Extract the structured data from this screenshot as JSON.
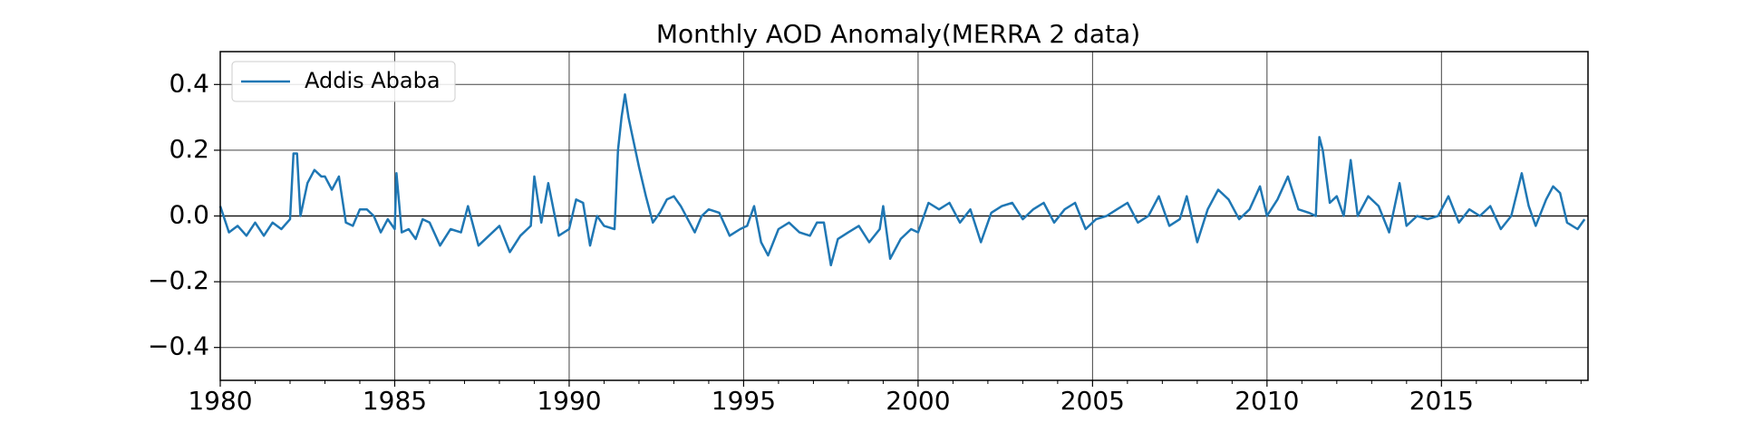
{
  "chart_data": {
    "type": "line",
    "title": "Monthly AOD Anomaly(MERRA 2 data)",
    "xlabel": "",
    "ylabel": "",
    "xlim": [
      1980,
      2019.2
    ],
    "ylim": [
      -0.5,
      0.5
    ],
    "x_ticks": [
      1980,
      1985,
      1990,
      1995,
      2000,
      2005,
      2010,
      2015
    ],
    "x_tick_labels": [
      "1980",
      "1985",
      "1990",
      "1995",
      "2000",
      "2005",
      "2010",
      "2015"
    ],
    "y_ticks": [
      -0.4,
      -0.2,
      0.0,
      0.2,
      0.4
    ],
    "y_tick_labels": [
      "−0.4",
      "−0.2",
      "0.0",
      "0.2",
      "0.4"
    ],
    "grid": true,
    "legend_position": "top-left",
    "series": [
      {
        "name": "Addis Ababa",
        "color": "#1f77b4",
        "x": [
          1980.0,
          1980.25,
          1980.5,
          1980.75,
          1981.0,
          1981.25,
          1981.5,
          1981.75,
          1982.0,
          1982.1,
          1982.2,
          1982.3,
          1982.5,
          1982.7,
          1982.9,
          1983.0,
          1983.2,
          1983.4,
          1983.6,
          1983.8,
          1984.0,
          1984.2,
          1984.4,
          1984.6,
          1984.8,
          1985.0,
          1985.05,
          1985.2,
          1985.4,
          1985.6,
          1985.8,
          1986.0,
          1986.3,
          1986.6,
          1986.9,
          1987.1,
          1987.4,
          1987.7,
          1988.0,
          1988.3,
          1988.6,
          1988.9,
          1989.0,
          1989.2,
          1989.4,
          1989.7,
          1990.0,
          1990.2,
          1990.4,
          1990.6,
          1990.8,
          1991.0,
          1991.3,
          1991.4,
          1991.5,
          1991.6,
          1991.7,
          1991.8,
          1992.0,
          1992.2,
          1992.4,
          1992.6,
          1992.8,
          1993.0,
          1993.2,
          1993.4,
          1993.6,
          1993.8,
          1994.0,
          1994.3,
          1994.6,
          1994.9,
          1995.1,
          1995.3,
          1995.5,
          1995.7,
          1996.0,
          1996.3,
          1996.6,
          1996.9,
          1997.1,
          1997.3,
          1997.5,
          1997.7,
          1998.0,
          1998.3,
          1998.6,
          1998.9,
          1999.0,
          1999.2,
          1999.5,
          1999.8,
          2000.0,
          2000.3,
          2000.6,
          2000.9,
          2001.2,
          2001.5,
          2001.8,
          2002.1,
          2002.4,
          2002.7,
          2003.0,
          2003.3,
          2003.6,
          2003.9,
          2004.2,
          2004.5,
          2004.8,
          2005.1,
          2005.4,
          2005.7,
          2006.0,
          2006.3,
          2006.6,
          2006.9,
          2007.2,
          2007.5,
          2007.7,
          2008.0,
          2008.3,
          2008.6,
          2008.9,
          2009.2,
          2009.5,
          2009.8,
          2010.0,
          2010.3,
          2010.6,
          2010.9,
          2011.2,
          2011.4,
          2011.5,
          2011.6,
          2011.8,
          2012.0,
          2012.2,
          2012.4,
          2012.6,
          2012.9,
          2013.2,
          2013.5,
          2013.8,
          2014.0,
          2014.3,
          2014.6,
          2014.9,
          2015.2,
          2015.5,
          2015.8,
          2016.1,
          2016.4,
          2016.7,
          2017.0,
          2017.3,
          2017.5,
          2017.7,
          2018.0,
          2018.2,
          2018.4,
          2018.6,
          2018.9,
          2019.1
        ],
        "values": [
          0.03,
          -0.05,
          -0.03,
          -0.06,
          -0.02,
          -0.06,
          -0.02,
          -0.04,
          -0.01,
          0.19,
          0.19,
          0.0,
          0.1,
          0.14,
          0.12,
          0.12,
          0.08,
          0.12,
          -0.02,
          -0.03,
          0.02,
          0.02,
          0.0,
          -0.05,
          -0.01,
          -0.04,
          0.13,
          -0.05,
          -0.04,
          -0.07,
          -0.01,
          -0.02,
          -0.09,
          -0.04,
          -0.05,
          0.03,
          -0.09,
          -0.06,
          -0.03,
          -0.11,
          -0.06,
          -0.03,
          0.12,
          -0.02,
          0.1,
          -0.06,
          -0.04,
          0.05,
          0.04,
          -0.09,
          0.0,
          -0.03,
          -0.04,
          0.2,
          0.3,
          0.37,
          0.3,
          0.25,
          0.15,
          0.06,
          -0.02,
          0.01,
          0.05,
          0.06,
          0.03,
          -0.01,
          -0.05,
          0.0,
          0.02,
          0.01,
          -0.06,
          -0.04,
          -0.03,
          0.03,
          -0.08,
          -0.12,
          -0.04,
          -0.02,
          -0.05,
          -0.06,
          -0.02,
          -0.02,
          -0.15,
          -0.07,
          -0.05,
          -0.03,
          -0.08,
          -0.04,
          0.03,
          -0.13,
          -0.07,
          -0.04,
          -0.05,
          0.04,
          0.02,
          0.04,
          -0.02,
          0.02,
          -0.08,
          0.01,
          0.03,
          0.04,
          -0.01,
          0.02,
          0.04,
          -0.02,
          0.02,
          0.04,
          -0.04,
          -0.01,
          0.0,
          0.02,
          0.04,
          -0.02,
          0.0,
          0.06,
          -0.03,
          -0.01,
          0.06,
          -0.08,
          0.02,
          0.08,
          0.05,
          -0.01,
          0.02,
          0.09,
          0.0,
          0.05,
          0.12,
          0.02,
          0.01,
          0.0,
          0.24,
          0.2,
          0.04,
          0.06,
          0.0,
          0.17,
          0.0,
          0.06,
          0.03,
          -0.05,
          0.1,
          -0.03,
          0.0,
          -0.01,
          0.0,
          0.06,
          -0.02,
          0.02,
          0.0,
          0.03,
          -0.04,
          0.0,
          0.13,
          0.03,
          -0.03,
          0.05,
          0.09,
          0.07,
          -0.02,
          -0.04,
          -0.01
        ]
      }
    ]
  }
}
